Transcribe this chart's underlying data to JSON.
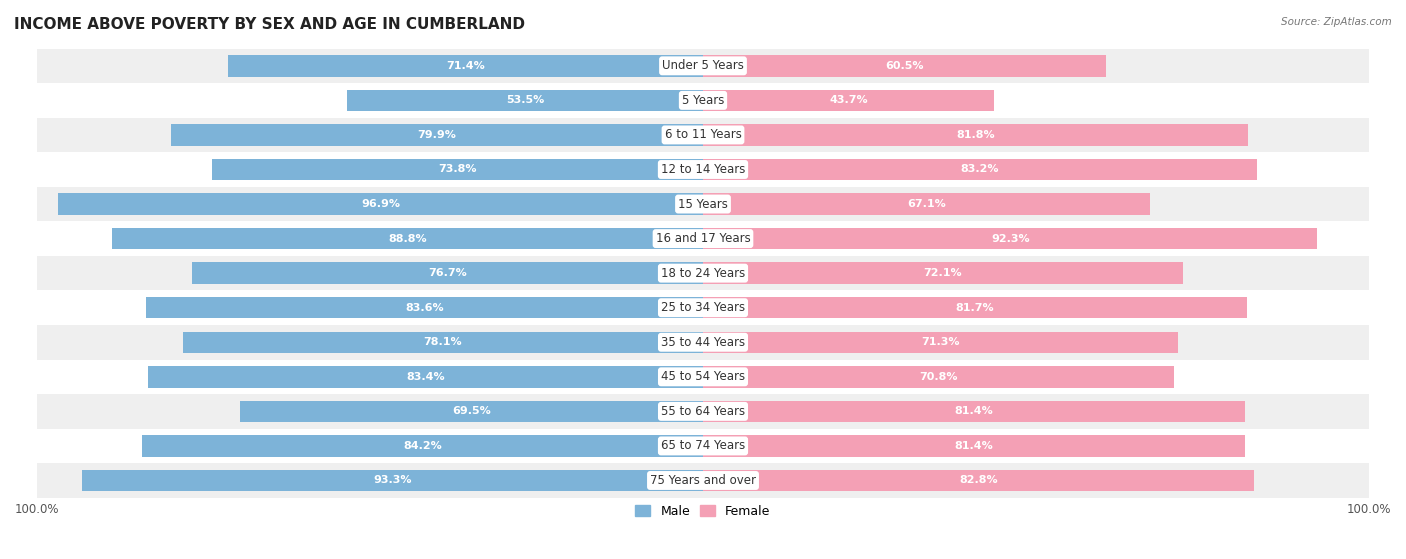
{
  "title": "INCOME ABOVE POVERTY BY SEX AND AGE IN CUMBERLAND",
  "source": "Source: ZipAtlas.com",
  "categories": [
    "Under 5 Years",
    "5 Years",
    "6 to 11 Years",
    "12 to 14 Years",
    "15 Years",
    "16 and 17 Years",
    "18 to 24 Years",
    "25 to 34 Years",
    "35 to 44 Years",
    "45 to 54 Years",
    "55 to 64 Years",
    "65 to 74 Years",
    "75 Years and over"
  ],
  "male_values": [
    71.4,
    53.5,
    79.9,
    73.8,
    96.9,
    88.8,
    76.7,
    83.6,
    78.1,
    83.4,
    69.5,
    84.2,
    93.3
  ],
  "female_values": [
    60.5,
    43.7,
    81.8,
    83.2,
    67.1,
    92.3,
    72.1,
    81.7,
    71.3,
    70.8,
    81.4,
    81.4,
    82.8
  ],
  "male_color": "#7db3d8",
  "female_color": "#f4a0b5",
  "male_label": "Male",
  "female_label": "Female",
  "bar_height": 0.62,
  "background_row_colors": [
    "#efefef",
    "#ffffff"
  ],
  "title_fontsize": 11,
  "label_fontsize": 8.5,
  "tick_fontsize": 8.5,
  "value_fontsize": 8.0,
  "legend_fontsize": 9
}
